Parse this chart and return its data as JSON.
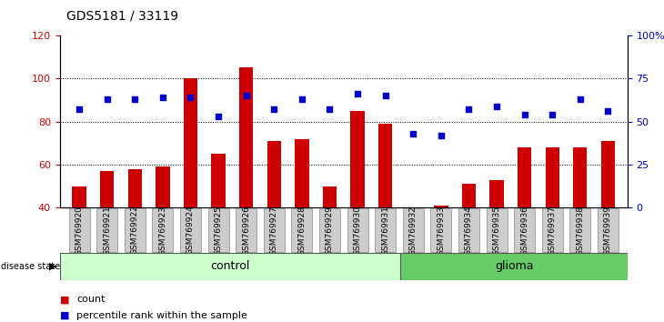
{
  "title": "GDS5181 / 33119",
  "samples": [
    "GSM769920",
    "GSM769921",
    "GSM769922",
    "GSM769923",
    "GSM769924",
    "GSM769925",
    "GSM769926",
    "GSM769927",
    "GSM769928",
    "GSM769929",
    "GSM769930",
    "GSM769931",
    "GSM769932",
    "GSM769933",
    "GSM769934",
    "GSM769935",
    "GSM769936",
    "GSM769937",
    "GSM769938",
    "GSM769939"
  ],
  "counts": [
    50,
    57,
    58,
    59,
    100,
    65,
    105,
    71,
    72,
    50,
    85,
    79,
    40,
    41,
    51,
    53,
    68,
    68,
    68,
    71
  ],
  "percentiles": [
    57,
    63,
    63,
    64,
    64,
    53,
    65,
    57,
    63,
    57,
    66,
    65,
    43,
    42,
    57,
    59,
    54,
    54,
    63,
    56
  ],
  "bar_color": "#cc0000",
  "dot_color": "#0000cc",
  "control_count": 12,
  "glioma_count": 8,
  "ylim_left": [
    40,
    120
  ],
  "ylim_right": [
    0,
    100
  ],
  "yticks_left": [
    40,
    60,
    80,
    100,
    120
  ],
  "yticks_right": [
    0,
    25,
    50,
    75,
    100
  ],
  "ytick_labels_right": [
    "0",
    "25",
    "50",
    "75",
    "100%"
  ],
  "grid_values": [
    60,
    80,
    100
  ],
  "bg_color": "#ffffff",
  "plot_bg": "#ffffff",
  "control_color": "#ccffcc",
  "glioma_color": "#66cc66",
  "tick_bg_color": "#cccccc"
}
